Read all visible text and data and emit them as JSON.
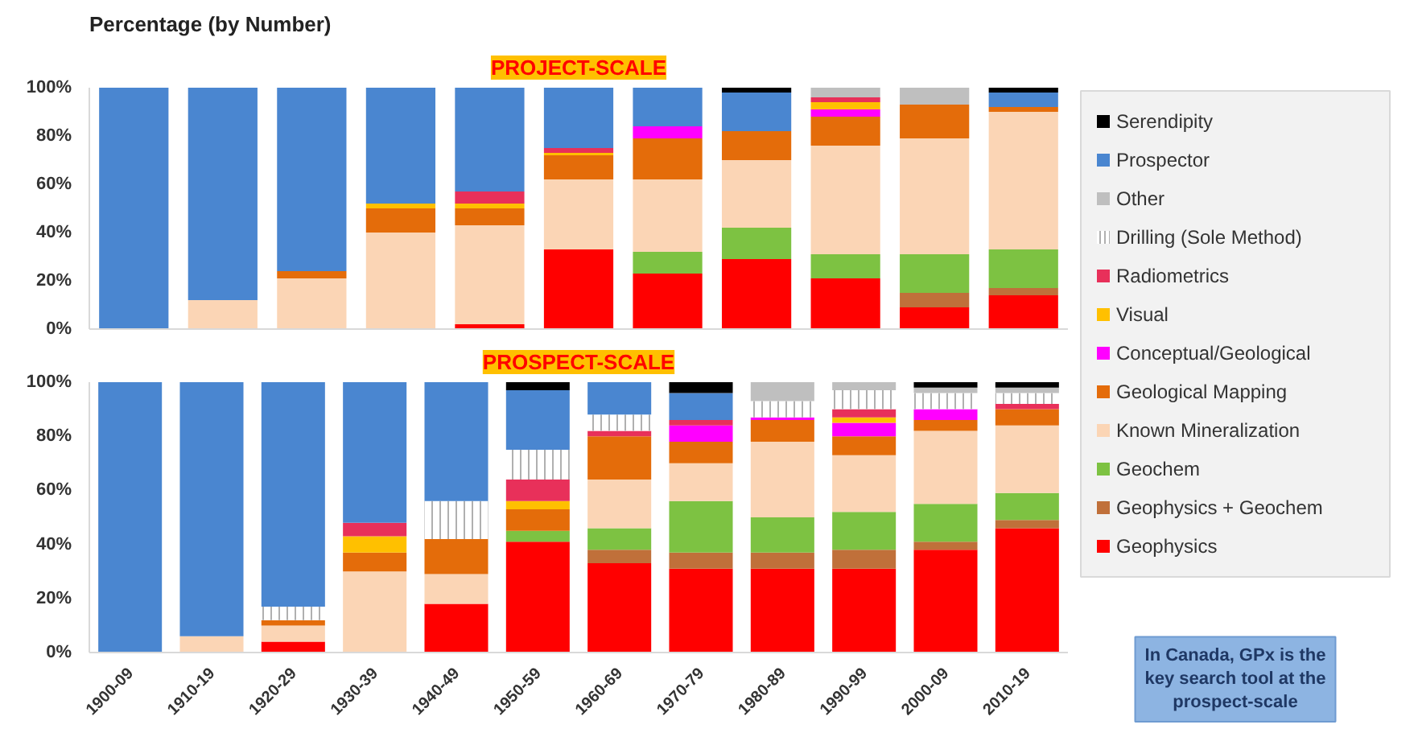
{
  "chart_data": [
    {
      "type": "bar",
      "title": "PROJECT-SCALE",
      "ylabel": "Percentage (by Number)",
      "stacked": true,
      "categories": [
        null,
        null,
        null,
        null,
        null,
        null,
        null,
        null,
        null,
        null,
        null
      ],
      "ylim": [
        0,
        100
      ],
      "yticks": [
        {
          "value": 0,
          "label": "0%"
        },
        {
          "value": 20,
          "label": "20%"
        },
        {
          "value": 40,
          "label": "40%"
        },
        {
          "value": 60,
          "label": "60%"
        },
        {
          "value": 80,
          "label": "80%"
        },
        {
          "value": 100,
          "label": "100%"
        }
      ],
      "tick_labels": "y",
      "grid": false,
      "legend": "right",
      "series": [
        {
          "name": "Geophysics",
          "color": "#ff0000",
          "values": [
            0,
            0,
            0,
            0,
            2,
            33,
            23,
            29,
            21,
            9,
            14
          ]
        },
        {
          "name": "Geophysics + Geochem",
          "color": "#c0703a",
          "values": [
            0,
            0,
            0,
            0,
            0,
            0,
            0,
            0,
            0,
            6,
            3
          ]
        },
        {
          "name": "Geochem",
          "color": "#7dc242",
          "values": [
            0,
            0,
            0,
            0,
            0,
            0,
            9,
            13,
            10,
            16,
            16
          ]
        },
        {
          "name": "Known Mineralization",
          "color": "#fbd5b5",
          "values": [
            0,
            12,
            21,
            40,
            41,
            29,
            30,
            28,
            45,
            48,
            57
          ]
        },
        {
          "name": "Geological Mapping",
          "color": "#e46c0a",
          "values": [
            0,
            0,
            3,
            10,
            7,
            10,
            17,
            12,
            12,
            14,
            2
          ]
        },
        {
          "name": "Conceptual/Geological",
          "color": "#ff00ff",
          "values": [
            0,
            0,
            0,
            0,
            0,
            0,
            5,
            0,
            3,
            0,
            0
          ]
        },
        {
          "name": "Visual",
          "color": "#ffc000",
          "values": [
            0,
            0,
            0,
            2,
            2,
            1,
            0,
            0,
            3,
            0,
            0
          ]
        },
        {
          "name": "Radiometrics",
          "color": "#e8305a",
          "values": [
            0,
            0,
            0,
            0,
            5,
            2,
            0,
            0,
            2,
            0,
            0
          ]
        },
        {
          "name": "Drilling (Sole Method)",
          "color": "#ffffff",
          "values": [
            0,
            0,
            0,
            0,
            0,
            0,
            0,
            0,
            0,
            0,
            0
          ]
        },
        {
          "name": "Other",
          "color": "#bfbfbf",
          "values": [
            0,
            0,
            0,
            0,
            0,
            0,
            0,
            0,
            4,
            7,
            0
          ]
        },
        {
          "name": "Prospector",
          "color": "#4a86d0",
          "values": [
            100,
            88,
            76,
            48,
            43,
            25,
            16,
            16,
            0,
            0,
            6
          ]
        },
        {
          "name": "Serendipity",
          "color": "#000000",
          "values": [
            0,
            0,
            0,
            0,
            0,
            0,
            0,
            2,
            0,
            0,
            2
          ]
        }
      ]
    },
    {
      "type": "bar",
      "title": "PROSPECT-SCALE",
      "stacked": true,
      "categories": [
        "1900-09",
        "1910-19",
        "1920-29",
        "1930-39",
        "1940-49",
        "1950-59",
        "1960-69",
        "1970-79",
        "1980-89",
        "1990-99",
        "2000-09",
        "2010-19"
      ],
      "ylim": [
        0,
        100
      ],
      "yticks": [
        {
          "value": 0,
          "label": "0%"
        },
        {
          "value": 20,
          "label": "20%"
        },
        {
          "value": 40,
          "label": "40%"
        },
        {
          "value": 60,
          "label": "60%"
        },
        {
          "value": 80,
          "label": "80%"
        },
        {
          "value": 100,
          "label": "100%"
        }
      ],
      "grid": false,
      "annotations": [
        "In Canada, GPx is the key search tool at the prospect-scale"
      ],
      "series": [
        {
          "color": "#ff0000",
          "values": [
            0,
            0,
            4,
            0,
            18,
            41,
            33,
            31,
            31,
            31,
            38,
            46
          ]
        },
        {
          "color": "#c0703a",
          "values": [
            0,
            0,
            0,
            0,
            0,
            0,
            5,
            6,
            6,
            7,
            3,
            3
          ]
        },
        {
          "color": "#7dc242",
          "values": [
            0,
            0,
            0,
            0,
            0,
            4,
            8,
            19,
            13,
            14,
            14,
            10
          ]
        },
        {
          "color": "#fbd5b5",
          "values": [
            0,
            6,
            6,
            30,
            11,
            0,
            18,
            14,
            28,
            21,
            27,
            25
          ]
        },
        {
          "color": "#e46c0a",
          "values": [
            0,
            0,
            2,
            7,
            13,
            8,
            16,
            8,
            8,
            7,
            4,
            6
          ]
        },
        {
          "color": "#ff00ff",
          "values": [
            0,
            0,
            0,
            0,
            0,
            0,
            0,
            6,
            1,
            5,
            4,
            0
          ]
        },
        {
          "color": "#ffc000",
          "values": [
            0,
            0,
            0,
            6,
            0,
            3,
            0,
            0,
            0,
            2,
            0,
            0
          ]
        },
        {
          "color": "#e8305a",
          "values": [
            0,
            0,
            0,
            5,
            0,
            8,
            2,
            2,
            0,
            3,
            0,
            2
          ]
        },
        {
          "color": "#ffffff",
          "values": [
            0,
            0,
            5,
            0,
            14,
            11,
            6,
            0,
            6,
            7,
            6,
            4
          ]
        },
        {
          "color": "#bfbfbf",
          "values": [
            0,
            0,
            0,
            0,
            0,
            0,
            0,
            0,
            7,
            3,
            2,
            2
          ]
        },
        {
          "color": "#4a86d0",
          "values": [
            100,
            94,
            83,
            52,
            44,
            22,
            12,
            10,
            0,
            0,
            0,
            0
          ]
        },
        {
          "color": "#000000",
          "values": [
            0,
            0,
            0,
            0,
            0,
            3,
            0,
            4,
            0,
            0,
            2,
            2
          ]
        }
      ]
    }
  ]
}
